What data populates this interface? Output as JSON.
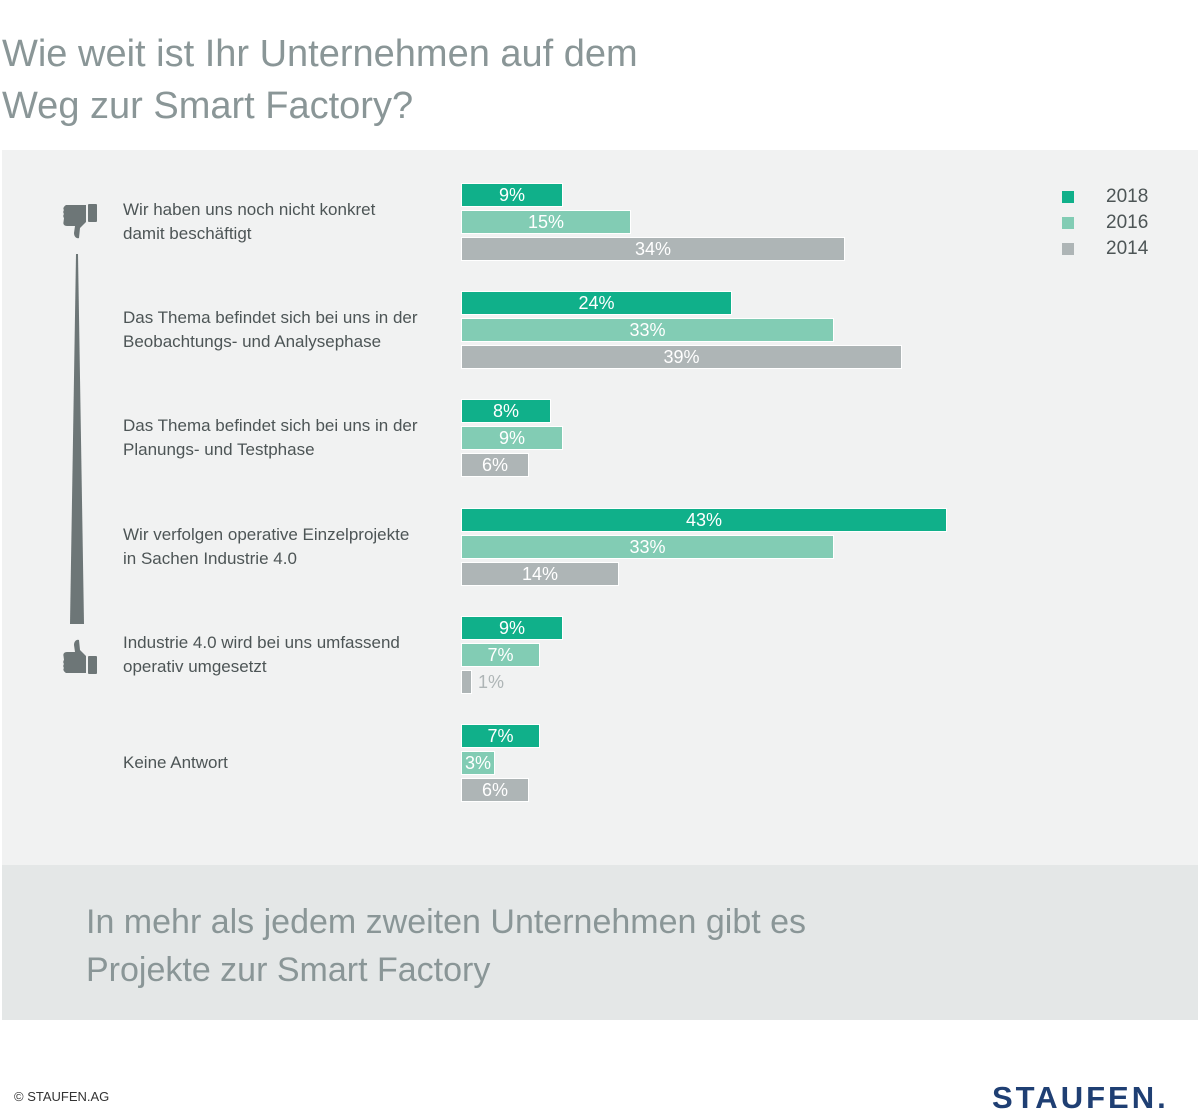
{
  "title_line1": "Wie weit ist Ihr Unternehmen auf dem",
  "title_line2": "Weg zur Smart Factory?",
  "colors": {
    "2018": "#10b08a",
    "2016": "#82ccb4",
    "2014": "#aeb5b6",
    "outside_label": "#aeb5b6"
  },
  "icons": {
    "top": "thumbs-down-icon",
    "bottom": "thumbs-up-icon"
  },
  "chart_data": {
    "type": "bar",
    "orientation": "horizontal",
    "categories": [
      [
        "Wir haben uns noch nicht konkret",
        "damit beschäftigt"
      ],
      [
        "Das Thema befindet sich bei uns in der",
        "Beobachtungs- und Analysephase"
      ],
      [
        "Das Thema befindet sich bei uns in der",
        "Planungs- und Testphase"
      ],
      [
        "Wir verfolgen operative Einzelprojekte",
        "in Sachen Industrie 4.0"
      ],
      [
        "Industrie 4.0 wird bei uns umfassend",
        "operativ umgesetzt"
      ],
      [
        "Keine Antwort"
      ]
    ],
    "series": [
      {
        "name": "2018",
        "values": [
          9,
          24,
          8,
          43,
          9,
          7
        ]
      },
      {
        "name": "2016",
        "values": [
          15,
          33,
          9,
          33,
          7,
          3
        ]
      },
      {
        "name": "2014",
        "values": [
          34,
          39,
          6,
          14,
          1,
          6
        ]
      }
    ],
    "value_suffix": "%",
    "legend_position": "top-right",
    "grid": false
  },
  "footer_line1": "In mehr als jedem zweiten Unternehmen gibt es",
  "footer_line2": "Projekte zur Smart Factory",
  "copyright": "© STAUFEN.AG",
  "logo": "STAUFEN."
}
